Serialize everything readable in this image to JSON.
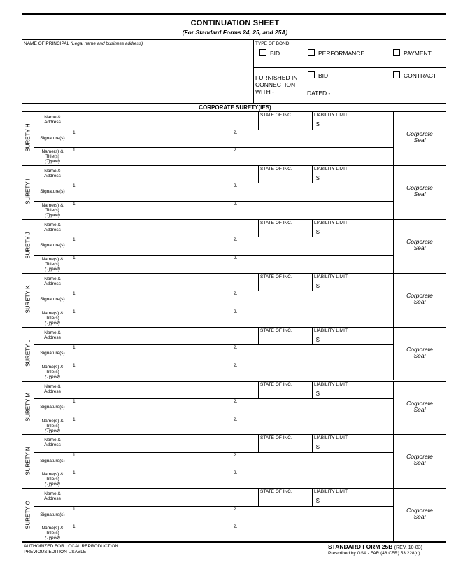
{
  "header": {
    "title": "CONTINUATION SHEET",
    "subtitle": "(For Standard Forms 24, 25, and 25A)"
  },
  "principal": {
    "label": "NAME OF PRINCIPAL",
    "label_hint": "(Legal name and business address)"
  },
  "bond_type": {
    "label": "TYPE OF BOND",
    "options": [
      "BID",
      "PERFORMANCE",
      "PAYMENT"
    ]
  },
  "furnished": {
    "label_line1": "FURNISHED IN",
    "label_line2": "CONNECTION",
    "label_line3": "WITH -",
    "options": [
      "BID",
      "CONTRACT"
    ],
    "dated_label": "DATED -"
  },
  "section_title": "CORPORATE SURETY(IES)",
  "field_labels": {
    "name_address_1": "Name &",
    "name_address_2": "Address",
    "signatures": "Signature(s)",
    "names_titles_1": "Name(s) &",
    "names_titles_2": "Title(s)",
    "names_titles_3": "(Typed)",
    "state_of_inc": "STATE OF INC.",
    "liability_limit": "LIABILITY LIMIT",
    "dollar": "$",
    "num1": "1.",
    "num2": "2.",
    "seal_1": "Corporate",
    "seal_2": "Seal"
  },
  "sureties": [
    {
      "label": "SURETY H"
    },
    {
      "label": "SURETY I"
    },
    {
      "label": "SURETY J"
    },
    {
      "label": "SURETY K"
    },
    {
      "label": "SURETY L"
    },
    {
      "label": "SURETY M"
    },
    {
      "label": "SURETY N"
    },
    {
      "label": "SURETY O"
    }
  ],
  "footer": {
    "left_line1": "AUTHORIZED FOR LOCAL REPRODUCTION",
    "left_line2": "PREVIOUS EDITION USABLE",
    "form_name": "STANDARD FORM 25B",
    "form_rev": "(REV. 10-83)",
    "prescribed": "Prescribed by GSA - FAR (48 CFR) 53.228(d)"
  }
}
